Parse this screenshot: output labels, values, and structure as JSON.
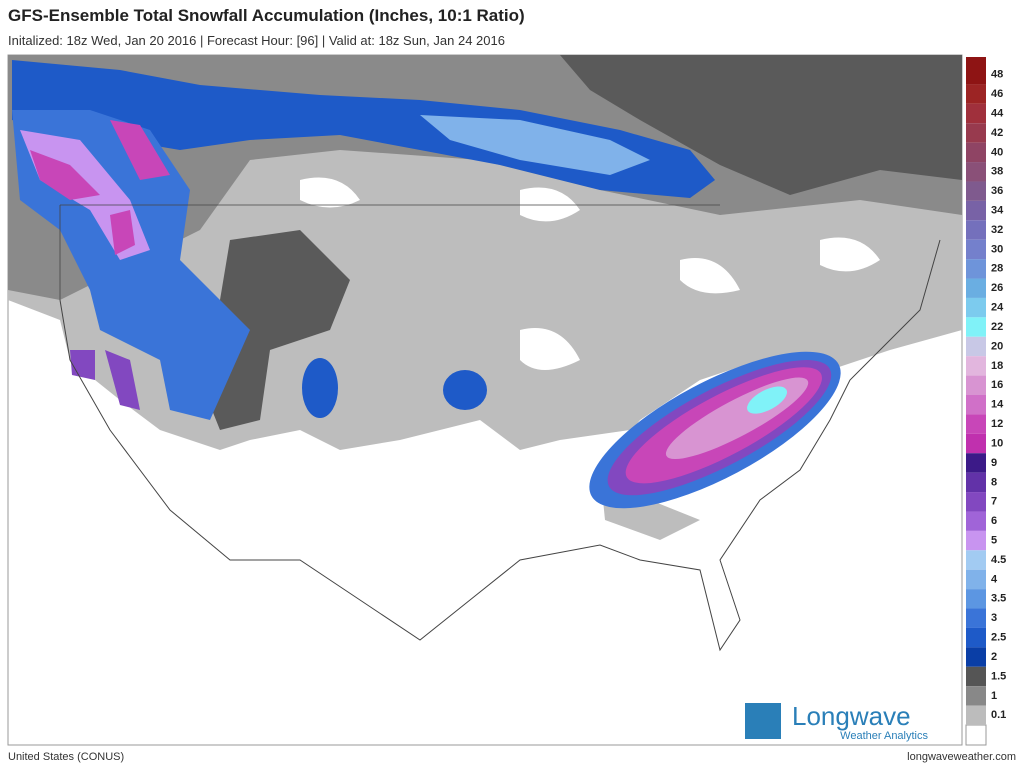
{
  "header": {
    "title": "GFS-Ensemble Total Snowfall Accumulation (Inches, 10:1 Ratio)",
    "subtitle": "Initalized: 18z Wed, Jan 20 2016  |  Forecast Hour: [96]  |  Valid at: 18z Sun, Jan 24 2016"
  },
  "legend": {
    "items": [
      {
        "label": 48,
        "color": "#8e1414"
      },
      {
        "label": 46,
        "color": "#9c2424"
      },
      {
        "label": 44,
        "color": "#a0303c"
      },
      {
        "label": 42,
        "color": "#983a4e"
      },
      {
        "label": 40,
        "color": "#8f4464"
      },
      {
        "label": 38,
        "color": "#8a5078"
      },
      {
        "label": 36,
        "color": "#7f5a8e"
      },
      {
        "label": 34,
        "color": "#7862a6"
      },
      {
        "label": 32,
        "color": "#7470bc"
      },
      {
        "label": 30,
        "color": "#7480cc"
      },
      {
        "label": 28,
        "color": "#6e94da"
      },
      {
        "label": 26,
        "color": "#6aaee2"
      },
      {
        "label": 24,
        "color": "#7ccbee"
      },
      {
        "label": 22,
        "color": "#80f2f8"
      },
      {
        "label": 20,
        "color": "#c8c8e6"
      },
      {
        "label": 18,
        "color": "#e2b6de"
      },
      {
        "label": 16,
        "color": "#d894d2"
      },
      {
        "label": 14,
        "color": "#d070c8"
      },
      {
        "label": 12,
        "color": "#c846b8"
      },
      {
        "label": 10,
        "color": "#c030ae"
      },
      {
        "label": 9,
        "color": "#3c1a88"
      },
      {
        "label": 8,
        "color": "#6232a8"
      },
      {
        "label": 7,
        "color": "#8248c0"
      },
      {
        "label": 6,
        "color": "#a064d8"
      },
      {
        "label": 5,
        "color": "#c894f0"
      },
      {
        "label": 4.5,
        "color": "#a2cbf2"
      },
      {
        "label": 4,
        "color": "#80b2ea"
      },
      {
        "label": 3.5,
        "color": "#5c96e2"
      },
      {
        "label": 3,
        "color": "#3a74d8"
      },
      {
        "label": 2.5,
        "color": "#1e5ac8"
      },
      {
        "label": 2,
        "color": "#0a3ea6"
      },
      {
        "label": 1.5,
        "color": "#555555"
      },
      {
        "label": 1,
        "color": "#888888"
      },
      {
        "label": 0.1,
        "color": "#bcbcbc"
      }
    ]
  },
  "logo": {
    "name": "Longwave",
    "tagline": "Weather Analytics"
  },
  "footer": {
    "region": "United States (CONUS)",
    "site": "longwaveweather.com"
  }
}
